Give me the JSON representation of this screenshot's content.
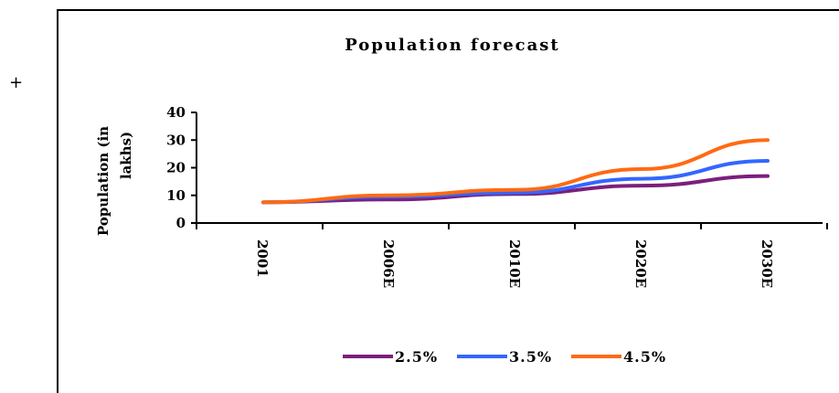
{
  "decorations": {
    "plus_mark": "+"
  },
  "chart_data": {
    "type": "line",
    "title": "Population forecast",
    "ylabel": "Population (in lakhs)",
    "ylabel_lines": [
      "Population (in",
      "lakhs)"
    ],
    "xlabel": "",
    "ylim": [
      0,
      40
    ],
    "yticks": [
      0,
      10,
      20,
      30,
      40
    ],
    "categories": [
      "2001",
      "2006E",
      "2010E",
      "2020E",
      "2030E"
    ],
    "series": [
      {
        "name": "2.5%",
        "color": "#7B1F7D",
        "values": [
          7.5,
          8.5,
          10.5,
          13.5,
          17
        ]
      },
      {
        "name": "3.5%",
        "color": "#3366FF",
        "values": [
          7.5,
          9.5,
          11,
          16,
          22.5
        ]
      },
      {
        "name": "4.5%",
        "color": "#FF6A13",
        "values": [
          7.5,
          10,
          12,
          19.5,
          30
        ]
      }
    ],
    "legend": {
      "position": "bottom"
    },
    "grid": false
  }
}
